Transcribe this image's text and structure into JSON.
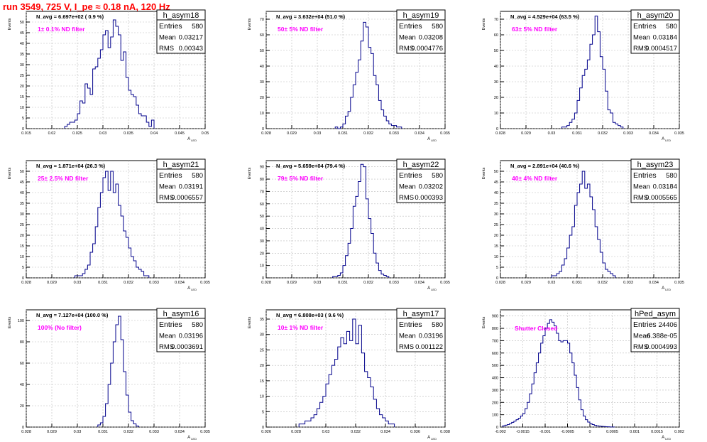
{
  "title": "run 3549,   725 V, I_pe ≈ 0.18 nA, 120 Hz",
  "colors": {
    "title": "#ff0000",
    "histogram": "#00008b",
    "note": "#ff00ff",
    "grid": "#bbbbbb"
  },
  "y_axis_label": "Events",
  "x_axis_label": "A",
  "x_axis_label_sub": "LED",
  "stats_labels": [
    "Entries",
    "Mean",
    "RMS"
  ],
  "chart_data": [
    {
      "type": "histogram",
      "name": "h_asym18",
      "stats": {
        "Entries": "580",
        "Mean": "0.03217",
        "RMS": "0.00343"
      },
      "n_avg": "N_avg = 6.697e+02 ( 0.9 %)",
      "note": "1± 0.1% ND filter",
      "xlim": [
        0.015,
        0.05
      ],
      "ylim": [
        0,
        55
      ],
      "xticks": [
        "0.015",
        "0.02",
        "0.025",
        "0.03",
        "0.035",
        "0.04",
        "0.045",
        "0.05"
      ],
      "yticks": [
        "0",
        "5",
        "10",
        "15",
        "20",
        "25",
        "30",
        "35",
        "40",
        "45",
        "50"
      ],
      "bin_width": 0.0005,
      "bin_start": 0.0225,
      "counts": [
        1,
        2,
        3,
        3,
        4,
        7,
        13,
        12,
        21,
        19,
        16,
        28,
        29,
        33,
        37,
        44,
        46,
        38,
        43,
        51,
        48,
        44,
        32,
        36,
        24,
        18,
        16,
        15,
        11,
        7,
        6,
        6,
        3,
        1,
        4
      ]
    },
    {
      "type": "histogram",
      "name": "h_asym19",
      "stats": {
        "Entries": "580",
        "Mean": "0.03208",
        "RMS": "0.0004776"
      },
      "n_avg": "N_avg = 3.632e+04 (51.0 %)",
      "note": "50± 5% ND filter",
      "xlim": [
        0.028,
        0.035
      ],
      "ylim": [
        0,
        75
      ],
      "xticks": [
        "0.028",
        "0.029",
        "0.03",
        "0.031",
        "0.032",
        "0.033",
        "0.034",
        "0.035"
      ],
      "yticks": [
        "0",
        "10",
        "20",
        "30",
        "40",
        "50",
        "60",
        "70"
      ],
      "bin_width": 0.0001,
      "bin_start": 0.0307,
      "counts": [
        1,
        0,
        1,
        3,
        8,
        11,
        20,
        28,
        36,
        44,
        56,
        68,
        65,
        52,
        48,
        34,
        28,
        18,
        12,
        8,
        5,
        3,
        2,
        2,
        1,
        1
      ]
    },
    {
      "type": "histogram",
      "name": "h_asym20",
      "stats": {
        "Entries": "580",
        "Mean": "0.03184",
        "RMS": "0.0004517"
      },
      "n_avg": "N_avg = 4.529e+04 (63.5 %)",
      "note": "63± 5% ND filter",
      "xlim": [
        0.028,
        0.035
      ],
      "ylim": [
        0,
        75
      ],
      "xticks": [
        "0.028",
        "0.029",
        "0.03",
        "0.031",
        "0.032",
        "0.033",
        "0.034",
        "0.035"
      ],
      "yticks": [
        "0",
        "10",
        "20",
        "30",
        "40",
        "50",
        "60",
        "70"
      ],
      "bin_width": 0.0001,
      "bin_start": 0.0304,
      "counts": [
        1,
        1,
        2,
        4,
        6,
        10,
        18,
        26,
        34,
        38,
        44,
        54,
        60,
        72,
        62,
        46,
        38,
        24,
        12,
        10,
        4,
        3,
        2,
        1
      ]
    },
    {
      "type": "histogram",
      "name": "h_asym21",
      "stats": {
        "Entries": "580",
        "Mean": "0.03191",
        "RMS": "0.0006557"
      },
      "n_avg": "N_avg = 1.871e+04 (26.3 %)",
      "note": "25± 2.5% ND filter",
      "xlim": [
        0.028,
        0.035
      ],
      "ylim": [
        0,
        55
      ],
      "xticks": [
        "0.028",
        "0.029",
        "0.03",
        "0.031",
        "0.032",
        "0.033",
        "0.034",
        "0.035"
      ],
      "yticks": [
        "0",
        "5",
        "10",
        "15",
        "20",
        "25",
        "30",
        "35",
        "40",
        "45",
        "50"
      ],
      "bin_width": 0.0001,
      "bin_start": 0.0299,
      "counts": [
        1,
        1,
        1,
        2,
        4,
        6,
        12,
        16,
        24,
        33,
        40,
        47,
        50,
        41,
        50,
        40,
        44,
        34,
        29,
        22,
        19,
        14,
        10,
        8,
        5,
        4,
        3,
        1,
        1
      ]
    },
    {
      "type": "histogram",
      "name": "h_asym22",
      "stats": {
        "Entries": "580",
        "Mean": "0.03202",
        "RMS": "0.000393"
      },
      "n_avg": "N_avg = 5.659e+04 (79.4 %)",
      "note": "79± 5% ND filter",
      "xlim": [
        0.028,
        0.035
      ],
      "ylim": [
        0,
        95
      ],
      "xticks": [
        "0.028",
        "0.029",
        "0.03",
        "0.031",
        "0.032",
        "0.033",
        "0.034",
        "0.035"
      ],
      "yticks": [
        "0",
        "10",
        "20",
        "30",
        "40",
        "50",
        "60",
        "70",
        "80",
        "90"
      ],
      "bin_width": 0.0001,
      "bin_start": 0.0306,
      "counts": [
        1,
        1,
        2,
        4,
        10,
        18,
        28,
        40,
        58,
        66,
        78,
        92,
        90,
        64,
        48,
        36,
        20,
        12,
        6,
        3,
        2,
        1
      ]
    },
    {
      "type": "histogram",
      "name": "h_asym23",
      "stats": {
        "Entries": "580",
        "Mean": "0.03184",
        "RMS": "0.0005565"
      },
      "n_avg": "N_avg = 2.891e+04 (40.6 %)",
      "note": "40± 4% ND filter",
      "xlim": [
        0.028,
        0.035
      ],
      "ylim": [
        0,
        55
      ],
      "xticks": [
        "0.028",
        "0.029",
        "0.03",
        "0.031",
        "0.032",
        "0.033",
        "0.034",
        "0.035"
      ],
      "yticks": [
        "0",
        "5",
        "10",
        "15",
        "20",
        "25",
        "30",
        "35",
        "40",
        "45",
        "50"
      ],
      "bin_width": 0.0001,
      "bin_start": 0.03,
      "counts": [
        1,
        1,
        2,
        3,
        6,
        9,
        14,
        20,
        24,
        34,
        40,
        44,
        50,
        42,
        44,
        38,
        32,
        24,
        18,
        12,
        7,
        4,
        3,
        2,
        1
      ]
    },
    {
      "type": "histogram",
      "name": "h_asym16",
      "stats": {
        "Entries": "580",
        "Mean": "0.03196",
        "RMS": "0.0003691"
      },
      "n_avg": "N_avg = 7.127e+04 (100.0 %)",
      "note": "100% (No filter)",
      "xlim": [
        0.028,
        0.035
      ],
      "ylim": [
        0,
        110
      ],
      "xticks": [
        "0.028",
        "0.029",
        "0.03",
        "0.031",
        "0.032",
        "0.033",
        "0.034",
        "0.035"
      ],
      "yticks": [
        "0",
        "20",
        "40",
        "60",
        "80",
        "100"
      ],
      "bin_width": 0.0001,
      "bin_start": 0.0308,
      "counts": [
        2,
        4,
        10,
        22,
        40,
        60,
        80,
        96,
        104,
        82,
        52,
        30,
        14,
        6,
        3,
        1
      ]
    },
    {
      "type": "histogram",
      "name": "h_asym17",
      "stats": {
        "Entries": "580",
        "Mean": "0.03196",
        "RMS": "0.001122"
      },
      "n_avg": "N_avg = 6.808e+03 ( 9.6 %)",
      "note": "10± 1% ND filter",
      "xlim": [
        0.026,
        0.038
      ],
      "ylim": [
        0,
        38
      ],
      "xticks": [
        "0.026",
        "0.028",
        "0.03",
        "0.032",
        "0.034",
        "0.036",
        "0.038"
      ],
      "yticks": [
        "0",
        "5",
        "10",
        "15",
        "20",
        "25",
        "30",
        "35"
      ],
      "bin_width": 0.0002,
      "bin_start": 0.0282,
      "counts": [
        1,
        1,
        2,
        2,
        3,
        4,
        6,
        8,
        10,
        14,
        17,
        20,
        22,
        26,
        29,
        27,
        31,
        28,
        35,
        27,
        33,
        24,
        18,
        16,
        13,
        9,
        6,
        4,
        3,
        2,
        1,
        1
      ]
    },
    {
      "type": "histogram",
      "name": "hPed_asym",
      "stats": {
        "Entries": "24406",
        "Mean": "-6.388e-05",
        "RMS": "0.0004993"
      },
      "n_avg": "",
      "note": "Shutter Closed",
      "xlim": [
        -0.002,
        0.002
      ],
      "ylim": [
        0,
        950
      ],
      "xticks": [
        "-0.002",
        "-0.0015",
        "-0.001",
        "-0.0005",
        "0",
        "0.0005",
        "0.001",
        "0.0015",
        "0.002"
      ],
      "yticks": [
        "0",
        "100",
        "200",
        "300",
        "400",
        "500",
        "600",
        "700",
        "800",
        "900"
      ],
      "bin_width": 5e-05,
      "bin_start": -0.00195,
      "counts": [
        10,
        15,
        20,
        28,
        38,
        48,
        60,
        72,
        90,
        110,
        150,
        200,
        270,
        350,
        440,
        520,
        600,
        680,
        740,
        800,
        840,
        870,
        850,
        820,
        760,
        700,
        690,
        700,
        700,
        680,
        600,
        520,
        420,
        320,
        220,
        140,
        90,
        60,
        40,
        28,
        20,
        14,
        10,
        8,
        6,
        4,
        3,
        2,
        1,
        1
      ]
    }
  ]
}
